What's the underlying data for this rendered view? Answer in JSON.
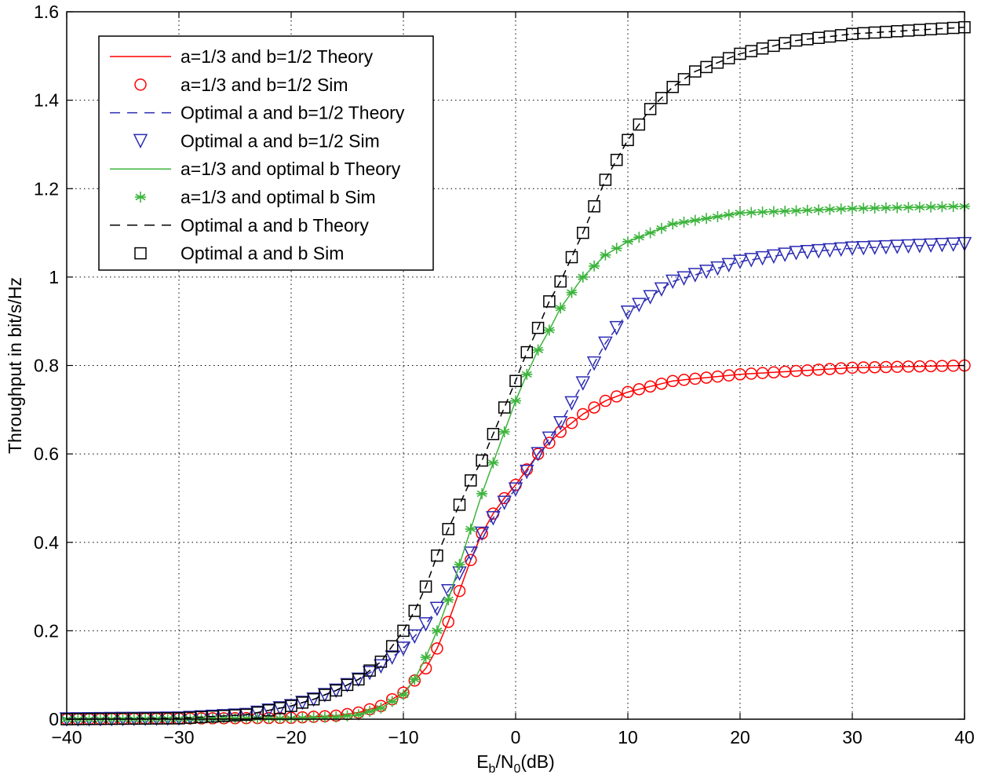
{
  "chart_data": {
    "type": "line",
    "title": "",
    "xlabel": {
      "base": "E",
      "sub1": "b",
      "mid": "/N",
      "sub2": "0",
      "tail": "(dB)"
    },
    "ylabel": "Throughput in bit/s/Hz",
    "xlim": [
      -40,
      40
    ],
    "ylim": [
      0,
      1.6
    ],
    "xticks": [
      -40,
      -30,
      -20,
      -10,
      0,
      10,
      20,
      30,
      40
    ],
    "xtick_labels": [
      "−40",
      "−30",
      "−20",
      "−10",
      "0",
      "10",
      "20",
      "30",
      "40"
    ],
    "yticks": [
      0,
      0.2,
      0.4,
      0.6,
      0.8,
      1.0,
      1.2,
      1.4,
      1.6
    ],
    "ytick_labels": [
      "0",
      "0.2",
      "0.4",
      "0.6",
      "0.8",
      "1",
      "1.2",
      "1.4",
      "1.6"
    ],
    "grid": true,
    "legend_position": "top-left",
    "sim_x_step": 1,
    "colors": {
      "red": "#ff0000",
      "blue": "#2b2bb4",
      "green": "#3cb43c",
      "black": "#000000"
    },
    "series": [
      {
        "name": "a=1/3 and b=1/2 Theory",
        "kind": "theory",
        "style": "solid",
        "color": "#ff0000",
        "x": [
          -40,
          -20,
          -16,
          -14,
          -12,
          -10,
          -8,
          -7,
          -6,
          -5,
          -4,
          -3,
          -2,
          -1,
          0,
          1,
          2,
          4,
          6,
          8,
          10,
          14,
          20,
          30,
          40
        ],
        "y": [
          0,
          0.003,
          0.008,
          0.015,
          0.03,
          0.06,
          0.115,
          0.16,
          0.22,
          0.29,
          0.36,
          0.42,
          0.465,
          0.5,
          0.53,
          0.565,
          0.6,
          0.65,
          0.69,
          0.72,
          0.74,
          0.765,
          0.78,
          0.795,
          0.8
        ]
      },
      {
        "name": "a=1/3 and b=1/2 Sim",
        "kind": "sim",
        "marker": "circle",
        "color": "#ff0000",
        "x": [
          -40,
          -20,
          -16,
          -14,
          -12,
          -10,
          -8,
          -7,
          -6,
          -5,
          -4,
          -3,
          -2,
          -1,
          0,
          1,
          2,
          4,
          6,
          8,
          10,
          14,
          20,
          30,
          40
        ],
        "y": [
          0,
          0.003,
          0.008,
          0.015,
          0.03,
          0.06,
          0.115,
          0.16,
          0.22,
          0.29,
          0.36,
          0.42,
          0.465,
          0.5,
          0.53,
          0.565,
          0.6,
          0.65,
          0.69,
          0.72,
          0.74,
          0.765,
          0.78,
          0.795,
          0.8
        ]
      },
      {
        "name": "Optimal a and b=1/2 Theory",
        "kind": "theory",
        "style": "dashed",
        "color": "#2b2bb4",
        "x": [
          -40,
          -30,
          -24,
          -20,
          -18,
          -16,
          -14,
          -12,
          -10,
          -8,
          -7,
          -6,
          -5,
          -4,
          -3,
          -2,
          -1,
          0,
          1,
          2,
          4,
          6,
          8,
          10,
          14,
          20,
          25,
          30,
          40
        ],
        "y": [
          0,
          0.002,
          0.01,
          0.03,
          0.045,
          0.065,
          0.09,
          0.12,
          0.16,
          0.215,
          0.25,
          0.29,
          0.33,
          0.375,
          0.42,
          0.455,
          0.49,
          0.52,
          0.56,
          0.6,
          0.67,
          0.76,
          0.85,
          0.92,
          0.99,
          1.035,
          1.055,
          1.065,
          1.075
        ]
      },
      {
        "name": "Optimal a and b=1/2 Sim",
        "kind": "sim",
        "marker": "triangle-down",
        "color": "#2b2bb4",
        "x": [
          -40,
          -30,
          -24,
          -20,
          -18,
          -16,
          -14,
          -12,
          -10,
          -8,
          -7,
          -6,
          -5,
          -4,
          -3,
          -2,
          -1,
          0,
          1,
          2,
          4,
          6,
          8,
          10,
          14,
          20,
          25,
          30,
          40
        ],
        "y": [
          0,
          0.002,
          0.01,
          0.03,
          0.045,
          0.065,
          0.09,
          0.12,
          0.16,
          0.215,
          0.25,
          0.29,
          0.33,
          0.375,
          0.42,
          0.455,
          0.49,
          0.52,
          0.56,
          0.6,
          0.67,
          0.76,
          0.85,
          0.92,
          0.99,
          1.035,
          1.055,
          1.065,
          1.075
        ]
      },
      {
        "name": "a=1/3 and optimal b Theory",
        "kind": "theory",
        "style": "solid",
        "color": "#3cb43c",
        "x": [
          -40,
          -20,
          -16,
          -14,
          -12,
          -10,
          -9,
          -8,
          -7,
          -6,
          -5,
          -4,
          -3,
          -2,
          -1,
          0,
          1,
          2,
          3,
          4,
          6,
          8,
          10,
          14,
          20,
          30,
          40
        ],
        "y": [
          0,
          0.002,
          0.005,
          0.01,
          0.025,
          0.055,
          0.09,
          0.14,
          0.2,
          0.27,
          0.35,
          0.43,
          0.51,
          0.58,
          0.65,
          0.72,
          0.78,
          0.835,
          0.88,
          0.93,
          1.0,
          1.05,
          1.08,
          1.12,
          1.145,
          1.155,
          1.16
        ]
      },
      {
        "name": "a=1/3 and optimal b Sim",
        "kind": "sim",
        "marker": "asterisk",
        "color": "#3cb43c",
        "x": [
          -40,
          -20,
          -16,
          -14,
          -12,
          -10,
          -9,
          -8,
          -7,
          -6,
          -5,
          -4,
          -3,
          -2,
          -1,
          0,
          1,
          2,
          3,
          4,
          6,
          8,
          10,
          14,
          20,
          30,
          40
        ],
        "y": [
          0,
          0.002,
          0.005,
          0.01,
          0.025,
          0.055,
          0.09,
          0.14,
          0.2,
          0.27,
          0.35,
          0.43,
          0.51,
          0.58,
          0.65,
          0.72,
          0.78,
          0.835,
          0.88,
          0.93,
          1.0,
          1.05,
          1.08,
          1.12,
          1.145,
          1.155,
          1.16
        ]
      },
      {
        "name": "Optimal a and b  Theory",
        "kind": "theory",
        "style": "dashed",
        "color": "#000000",
        "x": [
          -40,
          -30,
          -24,
          -20,
          -18,
          -16,
          -14,
          -12,
          -10,
          -9,
          -8,
          -7,
          -6,
          -5,
          -4,
          -3,
          -2,
          -1,
          0,
          1,
          2,
          3,
          4,
          5,
          6,
          8,
          10,
          12,
          14,
          16,
          18,
          20,
          25,
          30,
          40
        ],
        "y": [
          0,
          0.002,
          0.01,
          0.03,
          0.045,
          0.065,
          0.09,
          0.13,
          0.2,
          0.245,
          0.3,
          0.37,
          0.43,
          0.485,
          0.54,
          0.585,
          0.645,
          0.705,
          0.765,
          0.83,
          0.885,
          0.945,
          0.99,
          1.045,
          1.1,
          1.22,
          1.31,
          1.38,
          1.43,
          1.465,
          1.485,
          1.505,
          1.535,
          1.55,
          1.565
        ]
      },
      {
        "name": "Optimal a and b Sim",
        "kind": "sim",
        "marker": "square",
        "color": "#000000",
        "x": [
          -40,
          -30,
          -24,
          -20,
          -18,
          -16,
          -14,
          -12,
          -10,
          -9,
          -8,
          -7,
          -6,
          -5,
          -4,
          -3,
          -2,
          -1,
          0,
          1,
          2,
          3,
          4,
          5,
          6,
          8,
          10,
          12,
          14,
          16,
          18,
          20,
          25,
          30,
          40
        ],
        "y": [
          0,
          0.002,
          0.01,
          0.03,
          0.045,
          0.065,
          0.09,
          0.13,
          0.2,
          0.245,
          0.3,
          0.37,
          0.43,
          0.485,
          0.54,
          0.585,
          0.645,
          0.705,
          0.765,
          0.83,
          0.885,
          0.945,
          0.99,
          1.045,
          1.1,
          1.22,
          1.31,
          1.38,
          1.43,
          1.465,
          1.485,
          1.505,
          1.535,
          1.55,
          1.565
        ]
      }
    ]
  }
}
